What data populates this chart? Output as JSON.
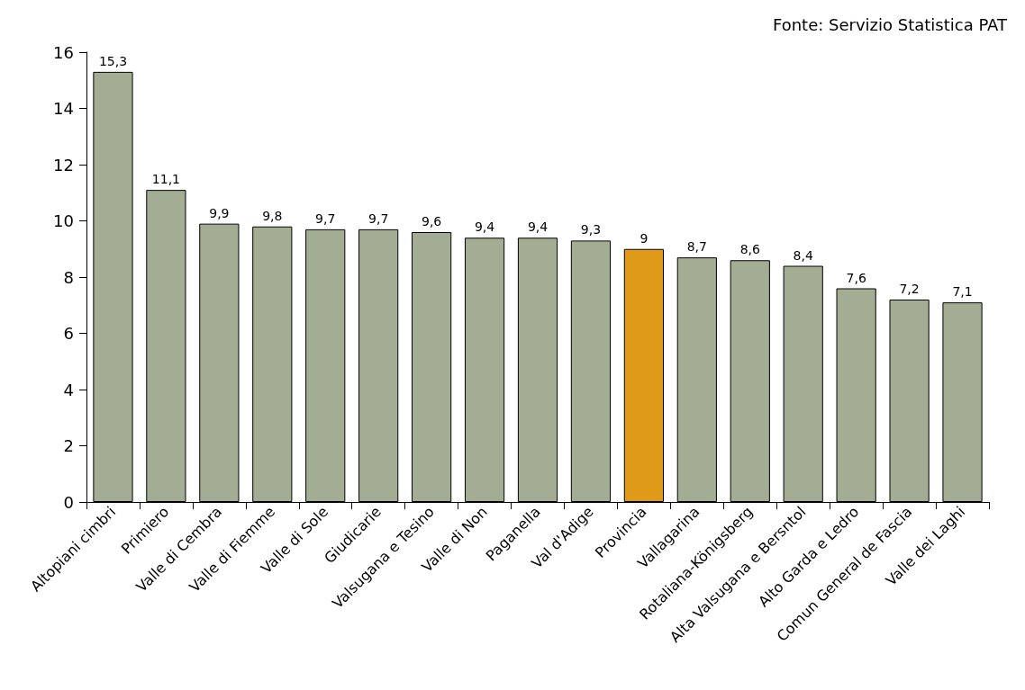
{
  "chart_data": {
    "type": "bar",
    "categories": [
      "Altopiani cimbri",
      "Primiero",
      "Valle di Cembra",
      "Valle di Fiemme",
      "Valle di Sole",
      "Giudicarie",
      "Valsugana e Tesino",
      "Valle di Non",
      "Paganella",
      "Val d'Adige",
      "Provincia",
      "Vallagarina",
      "Rotaliana-Königsberg",
      "Alta Valsugana e Bersntol",
      "Alto Garda e Ledro",
      "Comun General de Fascia",
      "Valle dei Laghi"
    ],
    "values": [
      15.3,
      11.1,
      9.9,
      9.8,
      9.7,
      9.7,
      9.6,
      9.4,
      9.4,
      9.3,
      9,
      8.7,
      8.6,
      8.4,
      7.6,
      7.2,
      7.1
    ],
    "value_labels": [
      "15,3",
      "11,1",
      "9,9",
      "9,8",
      "9,7",
      "9,7",
      "9,6",
      "9,4",
      "9,4",
      "9,3",
      "9",
      "8,7",
      "8,6",
      "8,4",
      "7,6",
      "7,2",
      "7,1"
    ],
    "colors": [
      "#a3ad94",
      "#a3ad94",
      "#a3ad94",
      "#a3ad94",
      "#a3ad94",
      "#a3ad94",
      "#a3ad94",
      "#a3ad94",
      "#a3ad94",
      "#a3ad94",
      "#e09a1a",
      "#a3ad94",
      "#a3ad94",
      "#a3ad94",
      "#a3ad94",
      "#a3ad94",
      "#a3ad94"
    ],
    "ylim": [
      0,
      16
    ],
    "yticks": [
      0,
      2,
      4,
      6,
      8,
      10,
      12,
      14,
      16
    ],
    "grid": false,
    "annotations": [
      "Fonte: Servizio Statistica PAT"
    ]
  }
}
